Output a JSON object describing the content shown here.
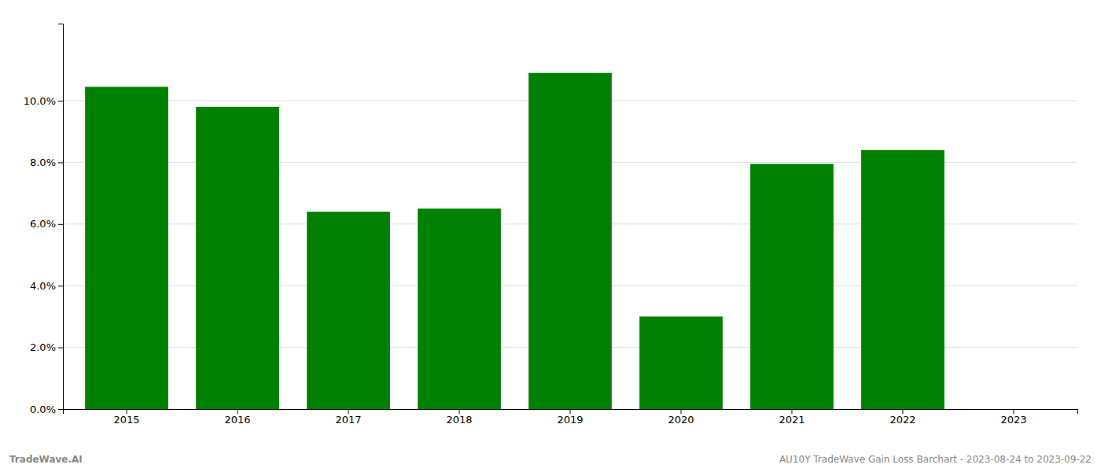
{
  "chart_data": {
    "type": "bar",
    "categories": [
      "2015",
      "2016",
      "2017",
      "2018",
      "2019",
      "2020",
      "2021",
      "2022",
      "2023"
    ],
    "values": [
      0.1045,
      0.098,
      0.064,
      0.065,
      0.109,
      0.03,
      0.0795,
      0.084,
      null
    ],
    "color": "#008000",
    "ylim": [
      0,
      0.125
    ],
    "yticks": [
      {
        "value": 0.0,
        "label": "0.0%"
      },
      {
        "value": 0.02,
        "label": "2.0%"
      },
      {
        "value": 0.04,
        "label": "4.0%"
      },
      {
        "value": 0.06,
        "label": "6.0%"
      },
      {
        "value": 0.08,
        "label": "8.0%"
      },
      {
        "value": 0.1,
        "label": "10.0%"
      }
    ],
    "grid": true,
    "annotations": [
      "TradeWave.AI",
      "AU10Y TradeWave Gain Loss Barchart - 2023-08-24 to 2023-09-22"
    ]
  }
}
